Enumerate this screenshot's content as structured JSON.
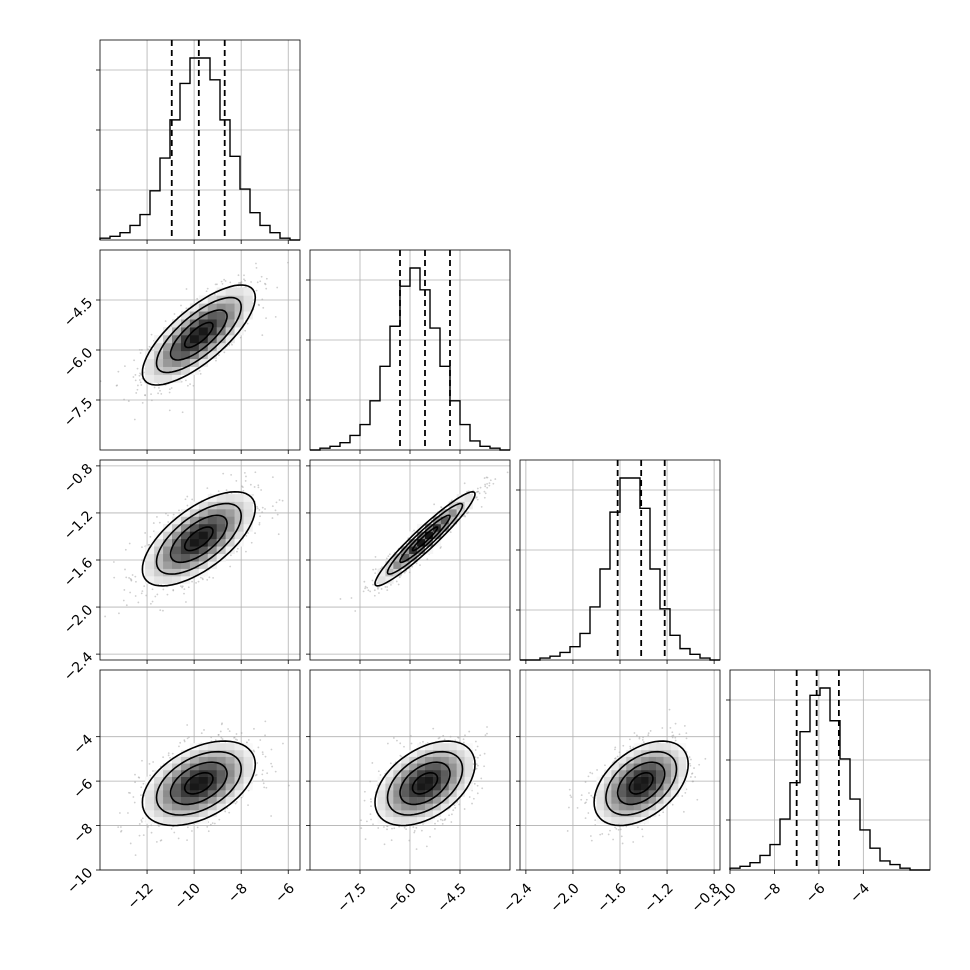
{
  "chart_data": {
    "type": "corner",
    "grid": true,
    "contour_color": "#000000",
    "point_color": "#a8a8a8",
    "parameters": [
      {
        "name": "",
        "range": [
          -14.0,
          -5.5
        ],
        "ticks": [
          -12,
          -10,
          -8,
          -6
        ],
        "tick_labels": [
          "−12",
          "−10",
          "−8",
          "−6"
        ],
        "mean": -9.8,
        "sd": 1.2,
        "quantiles": [
          -10.95,
          -9.8,
          -8.7
        ]
      },
      {
        "name": "",
        "range": [
          -9.0,
          -3.0
        ],
        "ticks": [
          -7.5,
          -6.0,
          -4.5
        ],
        "tick_labels": [
          "−7.5",
          "−6.0",
          "−4.5"
        ],
        "mean": -5.55,
        "sd": 0.75,
        "quantiles": [
          -6.3,
          -5.55,
          -4.8
        ]
      },
      {
        "name": "",
        "range": [
          -2.45,
          -0.75
        ],
        "ticks": [
          -2.4,
          -2.0,
          -1.6,
          -1.2,
          -0.8
        ],
        "tick_labels": [
          "−2.4",
          "−2.0",
          "−1.6",
          "−1.2",
          "−0.8"
        ],
        "mean": -1.42,
        "sd": 0.2,
        "quantiles": [
          -1.62,
          -1.42,
          -1.22
        ]
      },
      {
        "name": "",
        "range": [
          -10.0,
          -1.0
        ],
        "ticks": [
          -10,
          -8,
          -6,
          -4
        ],
        "tick_labels": [
          "−10",
          "−8",
          "−6",
          "−4"
        ],
        "mean": -6.1,
        "sd": 0.95,
        "quantiles": [
          -7.0,
          -6.1,
          -5.1
        ]
      }
    ],
    "correlations": [
      {
        "pair": [
          0,
          1
        ],
        "rho": 0.75
      },
      {
        "pair": [
          0,
          2
        ],
        "rho": 0.65
      },
      {
        "pair": [
          1,
          2
        ],
        "rho": 0.95
      },
      {
        "pair": [
          0,
          3
        ],
        "rho": 0.45
      },
      {
        "pair": [
          1,
          3
        ],
        "rho": 0.45
      },
      {
        "pair": [
          2,
          3
        ],
        "rho": 0.45
      }
    ],
    "histograms": [
      {
        "param": 0,
        "bins": 20,
        "counts": [
          1,
          2,
          4,
          8,
          14,
          27,
          45,
          66,
          86,
          100,
          100,
          88,
          66,
          46,
          28,
          15,
          8,
          4,
          1,
          0
        ]
      },
      {
        "param": 1,
        "bins": 20,
        "counts": [
          0,
          1,
          2,
          4,
          8,
          14,
          27,
          46,
          68,
          90,
          100,
          88,
          67,
          46,
          27,
          14,
          5,
          2,
          1,
          0
        ]
      },
      {
        "param": 2,
        "bins": 20,
        "counts": [
          0,
          0,
          1,
          2,
          4,
          7,
          14,
          28,
          48,
          78,
          96,
          96,
          80,
          48,
          27,
          13,
          6,
          3,
          1,
          0
        ]
      },
      {
        "param": 3,
        "bins": 20,
        "counts": [
          1,
          2,
          4,
          8,
          14,
          28,
          48,
          76,
          96,
          100,
          82,
          61,
          39,
          22,
          12,
          5,
          3,
          1,
          0,
          0
        ]
      }
    ]
  }
}
